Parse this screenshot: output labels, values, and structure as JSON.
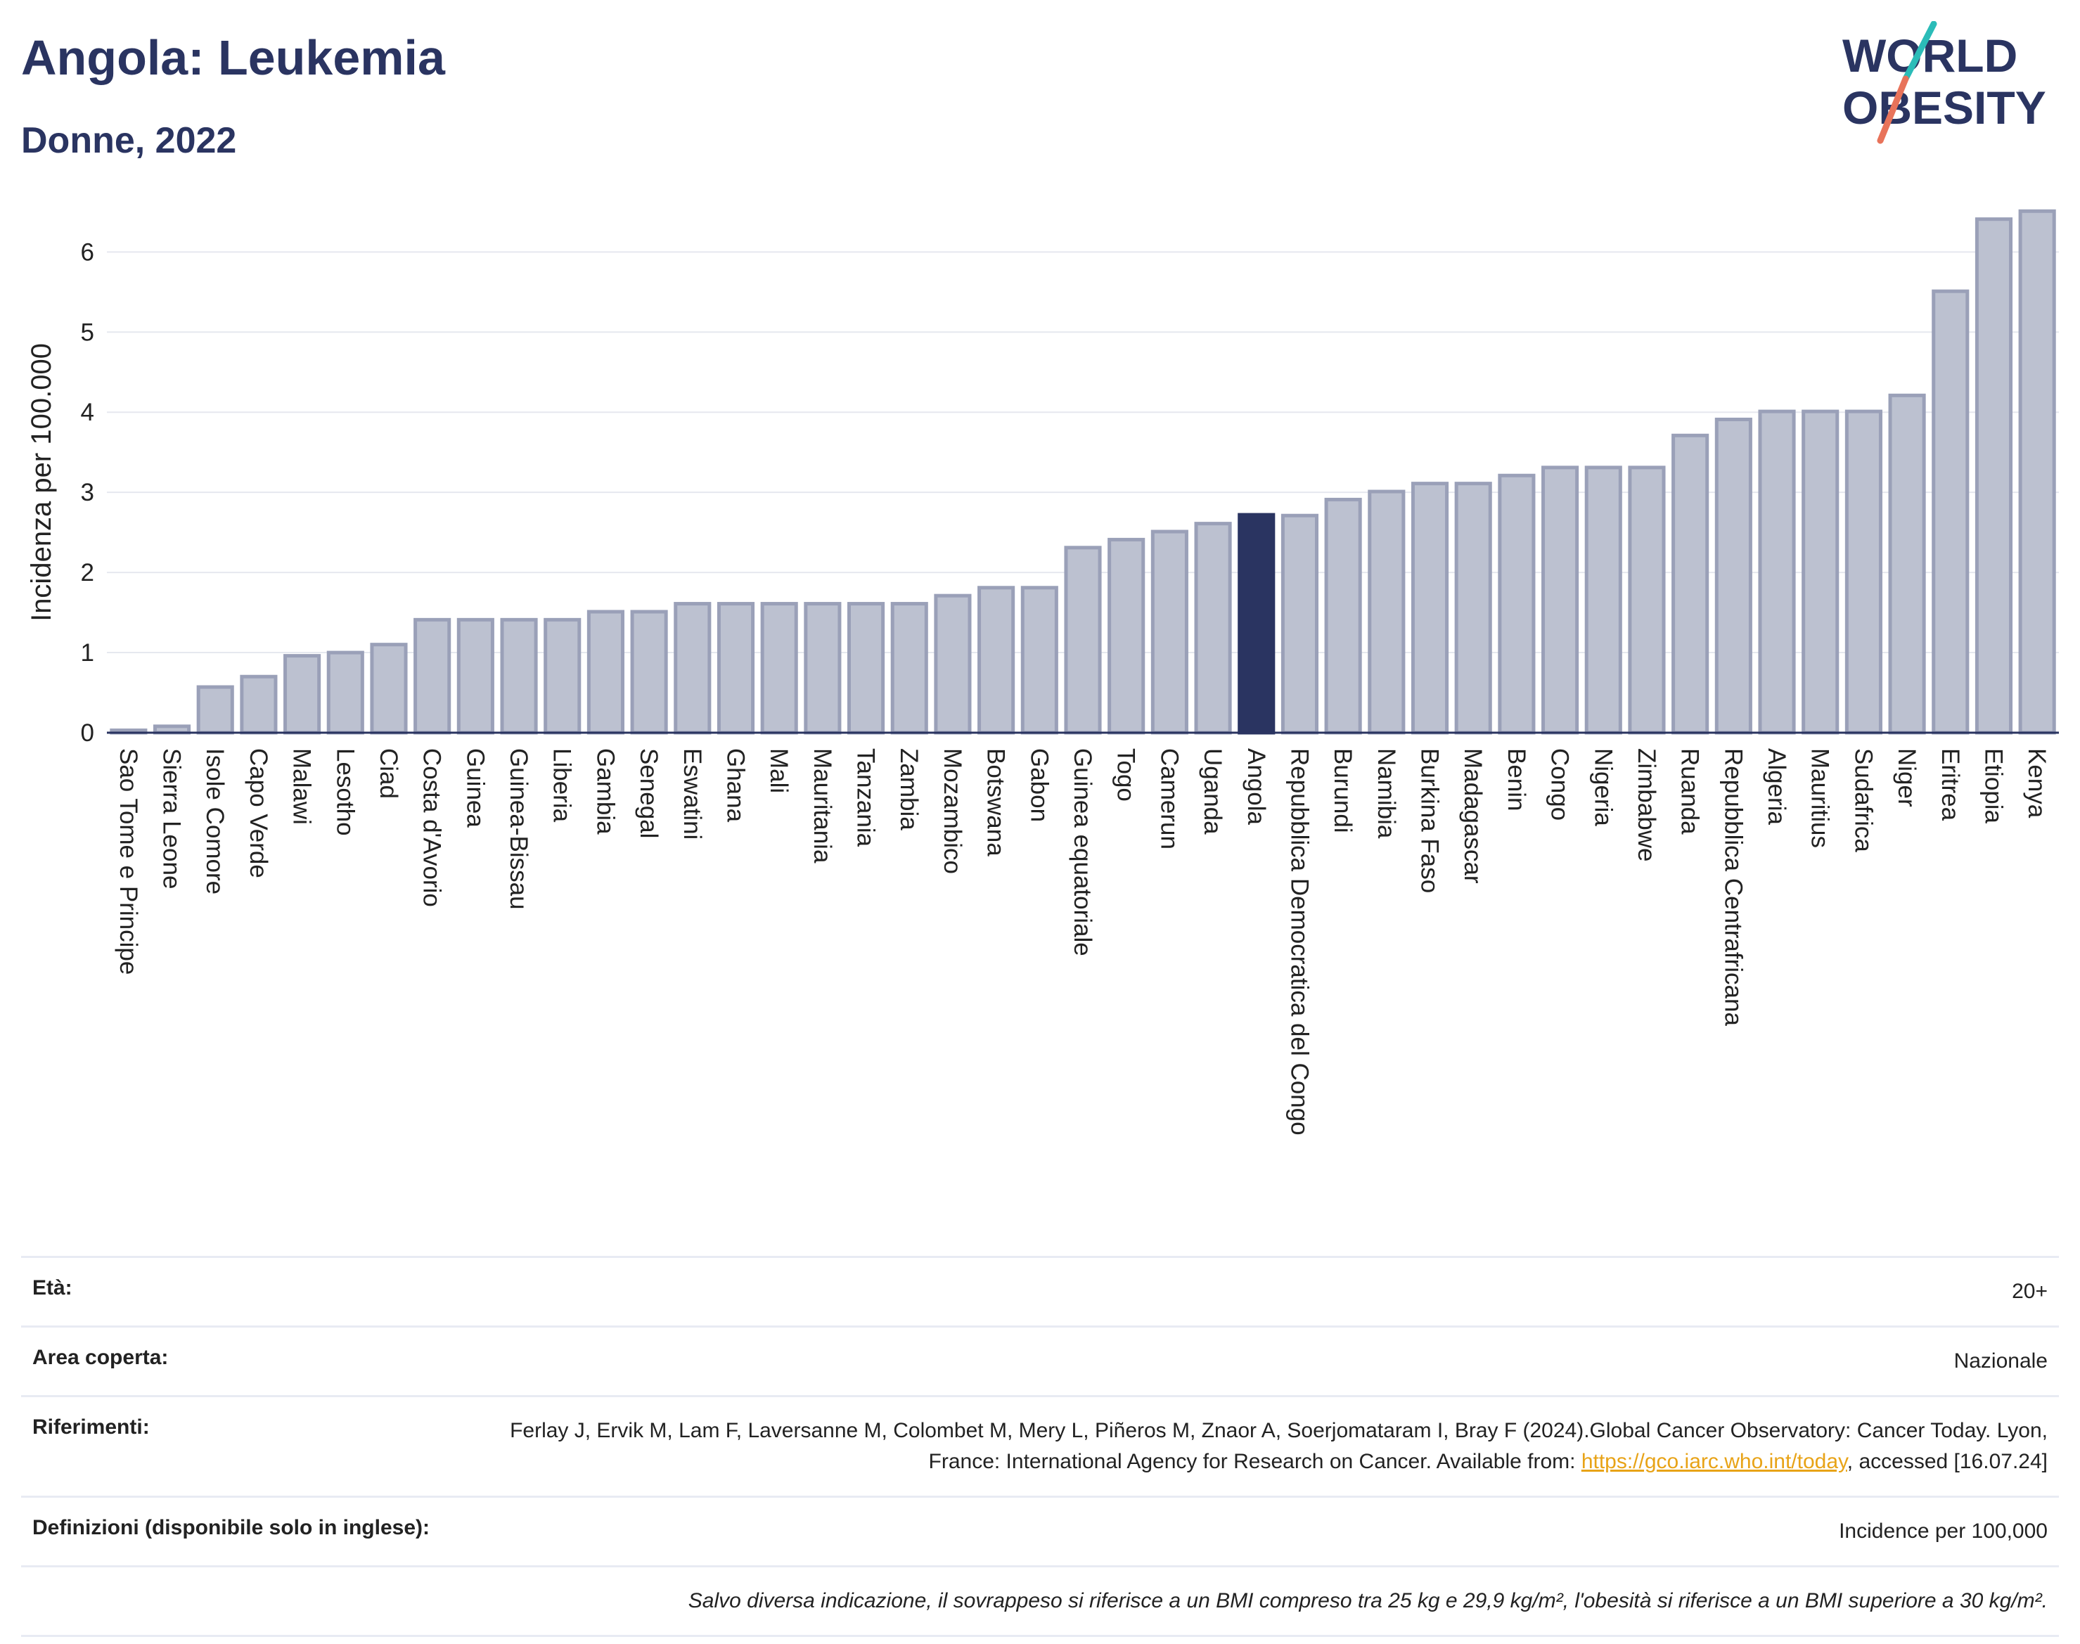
{
  "header": {
    "title": "Angola: Leukemia",
    "subtitle": "Donne, 2022"
  },
  "logo": {
    "line1": "WORLD",
    "line2": "OBESITY",
    "colors": {
      "text": "#2a3461",
      "slash_top": "#2bbcb8",
      "slash_bottom": "#e8735a"
    }
  },
  "colors": {
    "bar_fill": "#bcc1d0",
    "bar_stroke": "#9aa0b8",
    "highlight": "#2a3461",
    "grid": "#e6e8ef",
    "axis": "#2a3461"
  },
  "chart_data": {
    "type": "bar",
    "ylabel": "Incidenza per 100.000",
    "ylim": [
      0,
      6.6
    ],
    "yticks": [
      0,
      1,
      2,
      3,
      4,
      5,
      6
    ],
    "grid": true,
    "highlight": "Angola",
    "categories": [
      "Sao Tome e Principe",
      "Sierra Leone",
      "Isole Comore",
      "Capo Verde",
      "Malawi",
      "Lesotho",
      "Ciad",
      "Costa d'Avorio",
      "Guinea",
      "Guinea-Bissau",
      "Liberia",
      "Gambia",
      "Senegal",
      "Eswatini",
      "Ghana",
      "Mali",
      "Mauritania",
      "Tanzania",
      "Zambia",
      "Mozambico",
      "Botswana",
      "Gabon",
      "Guinea equatoriale",
      "Togo",
      "Camerun",
      "Uganda",
      "Angola",
      "Repubblica Democratica del Congo",
      "Burundi",
      "Namibia",
      "Burkina Faso",
      "Madagascar",
      "Benin",
      "Congo",
      "Nigeria",
      "Zimbabwe",
      "Ruanda",
      "Repubblica Centrafricana",
      "Algeria",
      "Mauritius",
      "Sudafrica",
      "Niger",
      "Eritrea",
      "Etiopia",
      "Kenya"
    ],
    "values": [
      0.03,
      0.08,
      0.57,
      0.7,
      0.96,
      1.0,
      1.1,
      1.41,
      1.41,
      1.41,
      1.41,
      1.51,
      1.51,
      1.61,
      1.61,
      1.61,
      1.61,
      1.61,
      1.61,
      1.71,
      1.81,
      1.81,
      2.31,
      2.41,
      2.51,
      2.61,
      2.72,
      2.71,
      2.91,
      3.01,
      3.11,
      3.11,
      3.21,
      3.31,
      3.31,
      3.31,
      3.71,
      3.91,
      4.01,
      4.01,
      4.01,
      4.21,
      5.51,
      6.41,
      6.51
    ]
  },
  "info": {
    "age_label": "Età:",
    "age_value": "20+",
    "area_label": "Area coperta:",
    "area_value": "Nazionale",
    "refs_label": "Riferimenti:",
    "refs_text_1": "Ferlay J, Ervik M, Lam F, Laversanne M, Colombet M, Mery L, Piñeros M, Znaor A, Soerjomataram I, Bray F (2024).Global Cancer Observatory: Cancer Today. Lyon, France: International Agency for Research on Cancer. Available from: ",
    "refs_link": "https://gco.iarc.who.int/today",
    "refs_text_2": ", accessed [16.07.24]",
    "defs_label": "Definizioni (disponibile solo in inglese):",
    "defs_value": "Incidence per 100,000",
    "note": "Salvo diversa indicazione, il sovrappeso si riferisce a un BMI compreso tra 25 kg e 29,9 kg/m², l'obesità si riferisce a un BMI superiore a 30 kg/m²."
  }
}
